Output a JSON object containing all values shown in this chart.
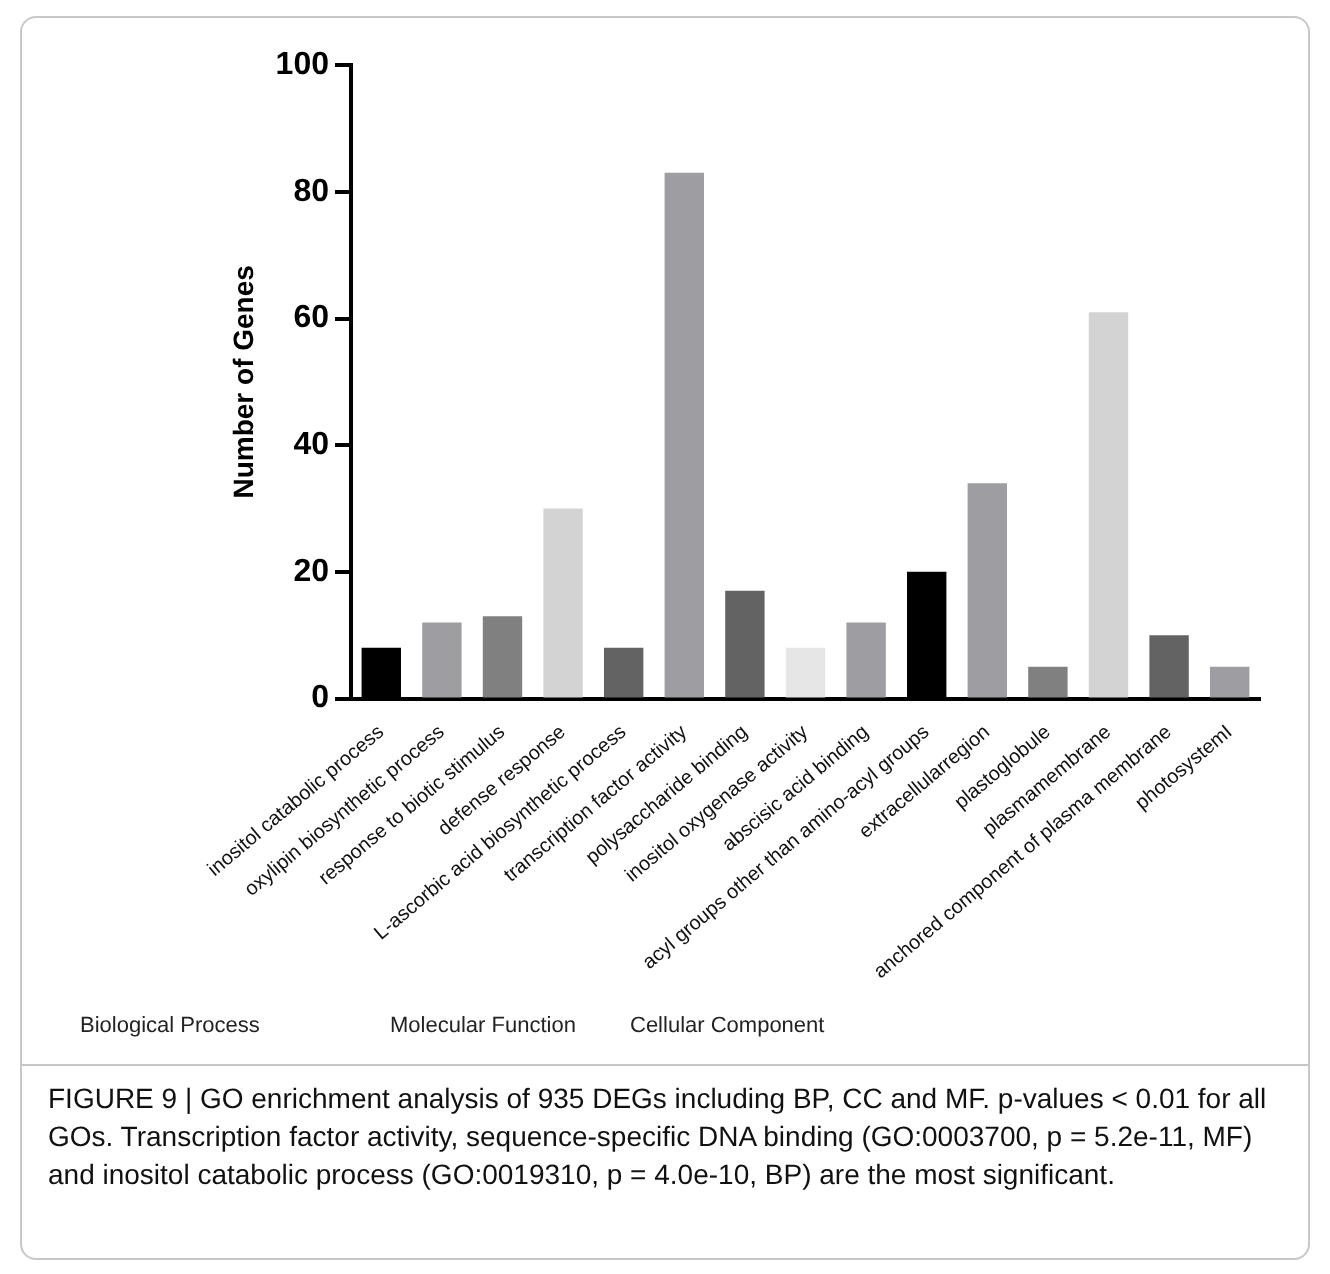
{
  "chart_data": {
    "type": "bar",
    "ylabel": "Number of Genes",
    "categories": [
      "inositol catabolic process",
      "oxylipin biosynthetic process",
      "response to biotic stimulus",
      "defense response",
      "L-ascorbic acid biosynthetic process",
      "transcription factor activity",
      "polysaccharide binding",
      "inositol oxygenase activity",
      "abscisic acid binding",
      "acyl groups other than amino-acyl groups",
      "extracellularregion",
      "plastoglobule",
      "plasmamembrane",
      "anchored component of plasma membrane",
      "photosystemI"
    ],
    "values": [
      8,
      12,
      13,
      30,
      8,
      83,
      17,
      8,
      12,
      20,
      34,
      5,
      61,
      10,
      5
    ],
    "colors": [
      "#000000",
      "#9d9da2",
      "#808080",
      "#d3d3d3",
      "#636363",
      "#9d9da2",
      "#636363",
      "#e6e6e6",
      "#9d9da2",
      "#000000",
      "#9d9da2",
      "#808080",
      "#d3d3d3",
      "#636363",
      "#9d9da2"
    ],
    "ylim": [
      0,
      100
    ],
    "yticks": [
      0,
      20,
      40,
      60,
      80,
      100
    ],
    "grid": false,
    "legend": false,
    "annotations": [
      "Biological Process",
      "Molecular Function",
      "Cellular Component",
      "FIGURE 9 | GO enrichment analysis of 935 DEGs including BP, CC and MF. p-values < 0.01 for all GOs. Transcription factor activity, sequence-specific DNA binding (GO:0003700, p = 5.2e-11, MF) and inositol catabolic process (GO:0019310, p = 4.0e-10, BP) are the most significant."
    ]
  }
}
